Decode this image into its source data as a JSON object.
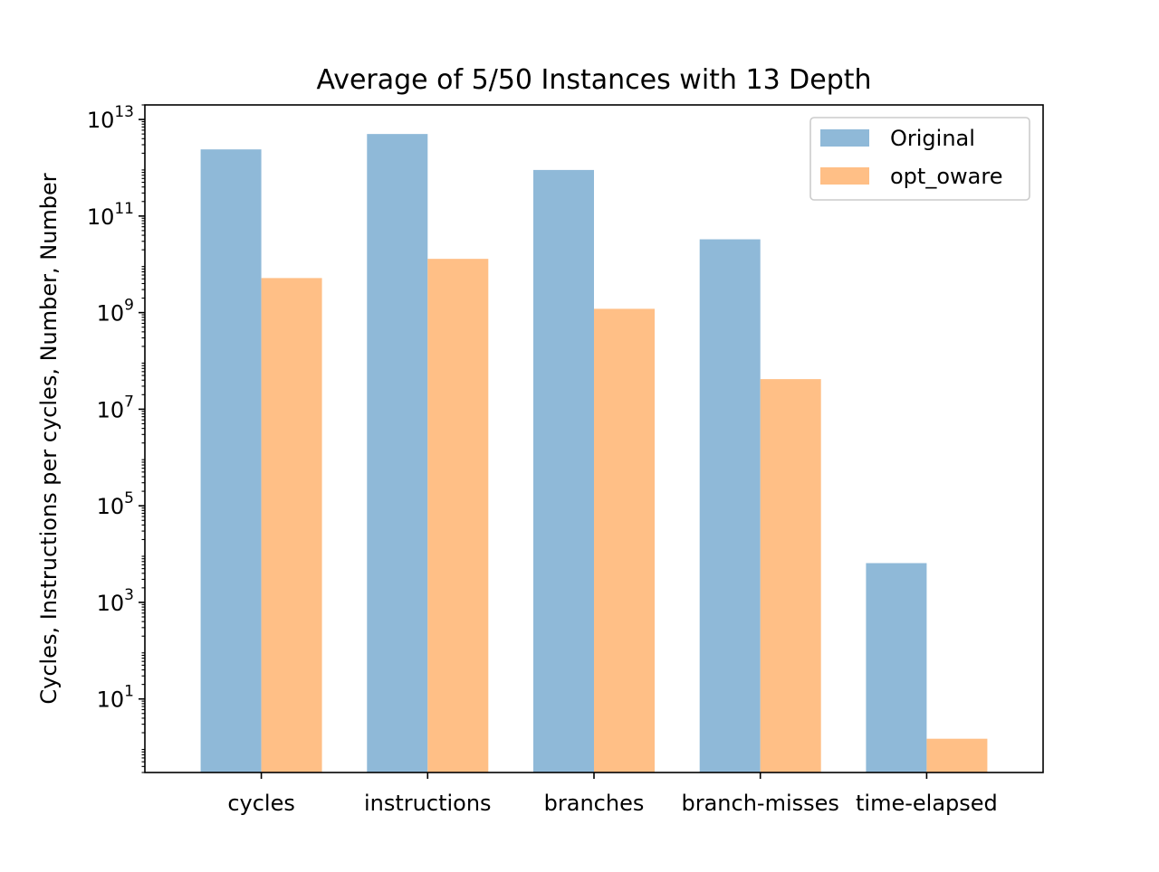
{
  "colors": {
    "original": "#8fb9d8",
    "opt_oware": "#ffbf86",
    "axis": "#000000",
    "legend_border": "#cccccc"
  },
  "chart_data": {
    "type": "bar",
    "title": "Average of 5/50 Instances with 13 Depth",
    "xlabel": "",
    "ylabel": "Cycles, Instructions per cycles, Number, Number",
    "yscale": "log",
    "ylim": [
      0.3,
      20000000000000
    ],
    "categories": [
      "cycles",
      "instructions",
      "branches",
      "branch-misses",
      "time-elapsed"
    ],
    "yticks": [
      {
        "value": 10,
        "base": "10",
        "exp": "1"
      },
      {
        "value": 1000,
        "base": "10",
        "exp": "3"
      },
      {
        "value": 100000,
        "base": "10",
        "exp": "5"
      },
      {
        "value": 10000000,
        "base": "10",
        "exp": "7"
      },
      {
        "value": 1000000000,
        "base": "10",
        "exp": "9"
      },
      {
        "value": 100000000000,
        "base": "10",
        "exp": "11"
      },
      {
        "value": 10000000000000,
        "base": "10",
        "exp": "13"
      }
    ],
    "series": [
      {
        "name": "Original",
        "color_key": "original",
        "values": [
          2400000000000,
          5000000000000,
          900000000000,
          33000000000,
          6500
        ]
      },
      {
        "name": "opt_oware",
        "color_key": "opt_oware",
        "values": [
          5200000000,
          13000000000,
          1200000000,
          42000000,
          1.5
        ]
      }
    ],
    "legend": {
      "position": "upper right"
    },
    "grid": false
  }
}
